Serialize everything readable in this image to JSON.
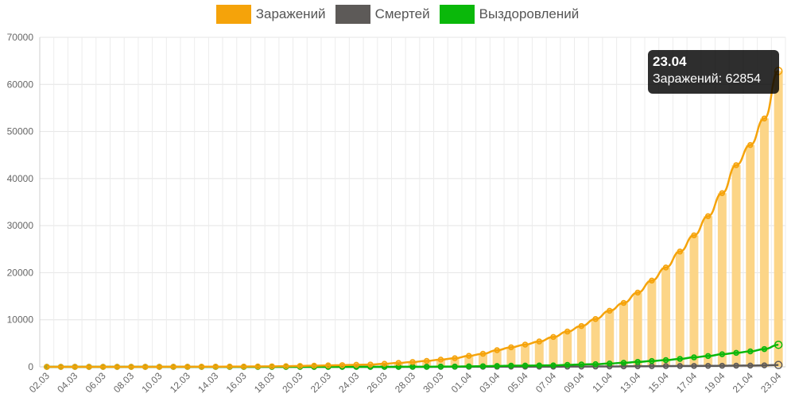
{
  "chart_data": {
    "type": "bar+line",
    "title": "",
    "xlabel": "",
    "ylabel": "",
    "ylim": [
      0,
      70000
    ],
    "y_ticks": [
      0,
      10000,
      20000,
      30000,
      40000,
      50000,
      60000,
      70000
    ],
    "grid": true,
    "legend_position": "top",
    "categories": [
      "02.03",
      "03.03",
      "04.03",
      "05.03",
      "06.03",
      "07.03",
      "08.03",
      "09.03",
      "10.03",
      "11.03",
      "12.03",
      "13.03",
      "14.03",
      "15.03",
      "16.03",
      "17.03",
      "18.03",
      "19.03",
      "20.03",
      "21.03",
      "22.03",
      "23.03",
      "24.03",
      "25.03",
      "26.03",
      "27.03",
      "28.03",
      "29.03",
      "30.03",
      "31.03",
      "01.04",
      "02.04",
      "03.04",
      "04.04",
      "05.04",
      "06.04",
      "07.04",
      "08.04",
      "09.04",
      "10.04",
      "11.04",
      "12.04",
      "13.04",
      "14.04",
      "15.04",
      "16.04",
      "17.04",
      "18.04",
      "19.04",
      "20.04",
      "21.04",
      "22.04",
      "23.04"
    ],
    "series": [
      {
        "name": "Заражений",
        "color": "#f5a30a",
        "bar_color": "#fcd587",
        "values": [
          3,
          3,
          3,
          4,
          4,
          4,
          10,
          10,
          10,
          17,
          28,
          34,
          45,
          59,
          63,
          90,
          114,
          147,
          199,
          253,
          306,
          367,
          438,
          495,
          658,
          840,
          1036,
          1264,
          1534,
          1836,
          2337,
          2777,
          3548,
          4149,
          4731,
          5389,
          6343,
          7497,
          8672,
          10158,
          11917,
          13584,
          15770,
          18328,
          21102,
          24490,
          27938,
          32008,
          36897,
          42853,
          47121,
          52763,
          62854
        ]
      },
      {
        "name": "Смертей",
        "color": "#5d5a58",
        "values": [
          0,
          0,
          0,
          0,
          0,
          0,
          0,
          0,
          0,
          0,
          0,
          0,
          0,
          0,
          0,
          0,
          0,
          1,
          1,
          1,
          1,
          1,
          1,
          3,
          3,
          3,
          4,
          8,
          9,
          17,
          24,
          30,
          33,
          37,
          40,
          42,
          48,
          56,
          66,
          76,
          84,
          105,
          128,
          143,
          164,
          183,
          195,
          213,
          229,
          259,
          277,
          318,
          394
        ]
      },
      {
        "name": "Выздоровлений",
        "color": "#0ab80a",
        "values": [
          0,
          0,
          0,
          0,
          0,
          0,
          0,
          0,
          0,
          0,
          0,
          0,
          0,
          0,
          0,
          0,
          0,
          0,
          0,
          0,
          1,
          1,
          2,
          4,
          5,
          9,
          20,
          26,
          57,
          63,
          105,
          135,
          182,
          247,
          270,
          296,
          317,
          420,
          516,
          561,
          718,
          863,
          1045,
          1241,
          1434,
          1694,
          2016,
          2302,
          2681,
          2971,
          3287,
          3783,
          4685
        ]
      }
    ],
    "x_tick_labels": [
      "02.03",
      "04.03",
      "06.03",
      "08.03",
      "10.03",
      "12.03",
      "14.03",
      "16.03",
      "18.03",
      "20.03",
      "22.03",
      "24.03",
      "26.03",
      "28.03",
      "30.03",
      "01.04",
      "03.04",
      "05.04",
      "07.04",
      "09.04",
      "11.04",
      "13.04",
      "15.04",
      "17.04",
      "19.04",
      "21.04",
      "23.04"
    ],
    "tooltip": {
      "title": "23.04",
      "body": "Заражений: 62854"
    }
  }
}
